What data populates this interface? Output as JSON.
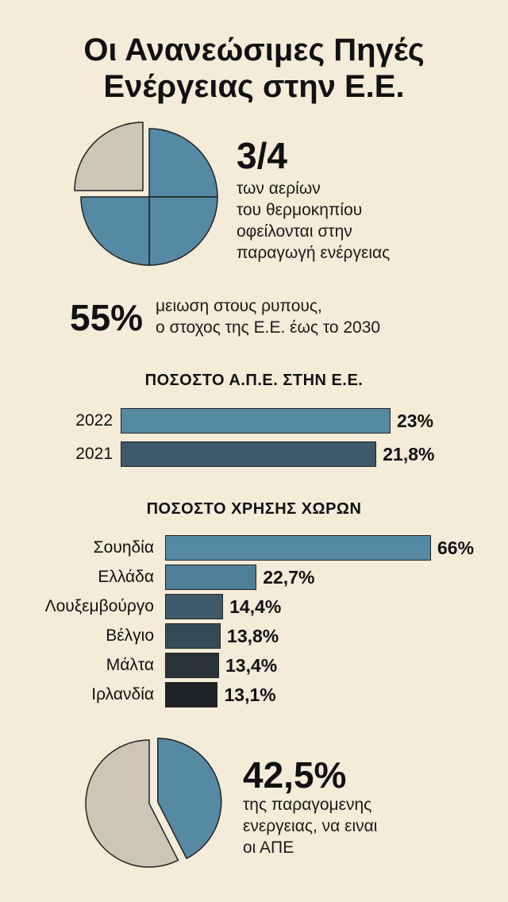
{
  "title": {
    "line1": "Οι Ανανεώσιμες Πηγές",
    "line2": "Ενέργειας στην Ε.Ε."
  },
  "stat1": {
    "value": "3/4",
    "lines": [
      "των αερίων",
      "του θερμοκηπίου",
      "οφείλονται στην",
      "παραγωγή ενέργειας"
    ]
  },
  "stat2": {
    "value": "55%",
    "lines": [
      "μειωση στους ρυπους,",
      "ο στοχος της Ε.Ε. έως το 2030"
    ]
  },
  "stat3": {
    "value": "42,5%",
    "lines": [
      "της παραγομενης",
      "ενεργειας, να ειναι",
      "οι ΑΠΕ"
    ]
  },
  "colors": {
    "background": "#f4ecd9",
    "blue": "#5689a4",
    "grey": "#ccc6b6"
  },
  "chart_data": [
    {
      "type": "pie",
      "values": [
        0.75,
        0.25
      ],
      "colors": [
        "#5689a4",
        "#ccc6b6"
      ]
    },
    {
      "type": "bar",
      "title": "ΠΟΣΟΣΤΟ Α.Π.Ε. ΣΤΗΝ Ε.Ε.",
      "categories": [
        "2022",
        "2021"
      ],
      "values": [
        23,
        21.8
      ],
      "value_labels": [
        "23%",
        "21,8%"
      ],
      "colors": [
        "#5689a4",
        "#3e5a6a"
      ],
      "orientation": "horizontal"
    },
    {
      "type": "bar",
      "title": "ΠΟΣΟΣΤΟ ΧΡΗΣΗΣ ΧΩΡΩΝ",
      "categories": [
        "Σουηδία",
        "Ελλάδα",
        "Λουξεμβούργο",
        "Βέλγιο",
        "Μάλτα",
        "Ιρλανδία"
      ],
      "values": [
        66,
        22.7,
        14.4,
        13.8,
        13.4,
        13.1
      ],
      "value_labels": [
        "66%",
        "22,7%",
        "14,4%",
        "13,8%",
        "13,4%",
        "13,1%"
      ],
      "colors": [
        "#5689a4",
        "#4f7f98",
        "#3e5a6a",
        "#344a56",
        "#2a3338",
        "#1f2224"
      ],
      "orientation": "horizontal"
    },
    {
      "type": "pie",
      "values": [
        0.425,
        0.575
      ],
      "colors": [
        "#5689a4",
        "#ccc6b6"
      ]
    }
  ]
}
